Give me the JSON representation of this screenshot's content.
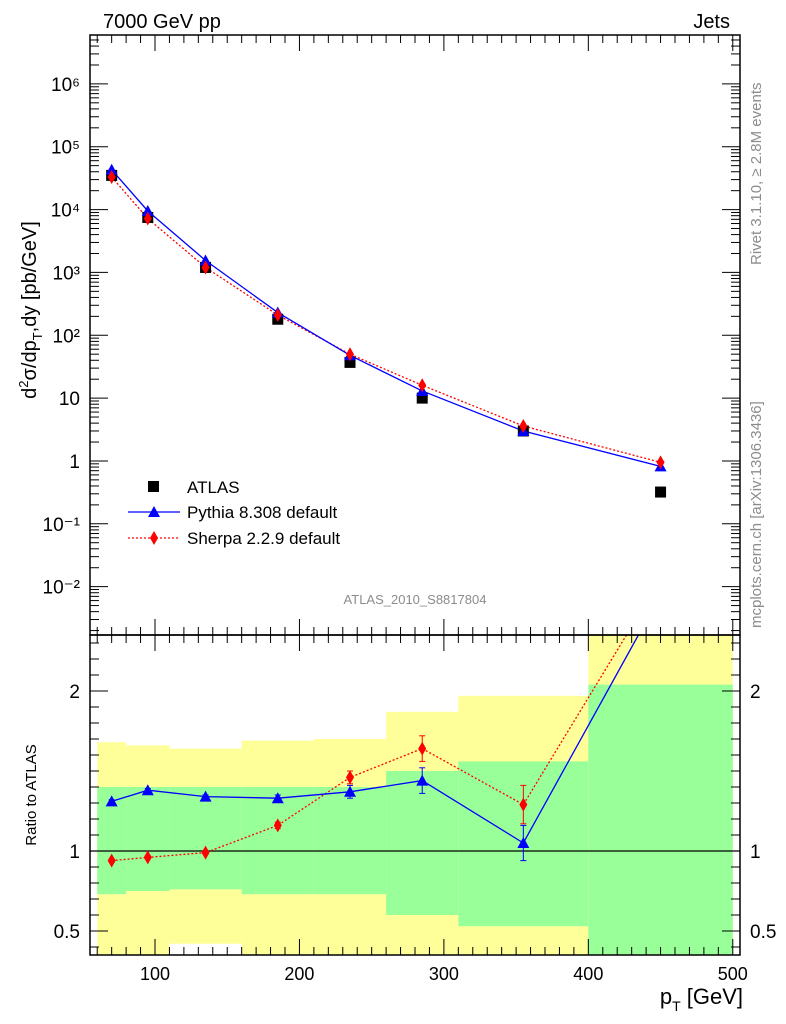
{
  "header": {
    "left": "7000 GeV pp",
    "right": "Jets"
  },
  "side_text": {
    "rivet": "Rivet 3.1.10, ≥ 2.8M events",
    "mcplots": "mcplots.cern.ch [arXiv:1306.3436]"
  },
  "analysis_label": "ATLAS_2010_S8817804",
  "colors": {
    "data": "#000000",
    "pythia": "#0000ff",
    "sherpa": "#ff0000",
    "band_inner": "#99ff99",
    "band_outer": "#ffff99"
  },
  "chart_data": [
    {
      "type": "scatter",
      "panel": "main",
      "ylabel": "d²σ/dp_T,dy [pb/GeV]",
      "yscale": "log",
      "ylim": [
        0.0017,
        6000000
      ],
      "xlim": [
        55,
        505
      ],
      "y_tick_labels": [
        "10⁻²",
        "10⁻¹",
        "1",
        "10",
        "10²",
        "10³",
        "10⁴",
        "10⁵",
        "10⁶"
      ],
      "legend_position": "lower-left",
      "series": [
        {
          "name": "ATLAS",
          "marker": "square",
          "x": [
            70,
            95,
            135,
            185,
            235,
            285,
            355,
            450
          ],
          "y": [
            35000,
            7500,
            1200,
            180,
            37,
            10,
            3,
            0.32
          ]
        },
        {
          "name": "Pythia 8.308 default",
          "marker": "triangle",
          "x": [
            70,
            95,
            135,
            185,
            235,
            285,
            355,
            450
          ],
          "y": [
            43000,
            9500,
            1550,
            230,
            48,
            13,
            3.0,
            0.82
          ]
        },
        {
          "name": "Sherpa 2.2.9 default",
          "marker": "diamond",
          "x": [
            70,
            95,
            135,
            185,
            235,
            285,
            355,
            450
          ],
          "y": [
            33000,
            7200,
            1200,
            210,
            50,
            16,
            3.6,
            0.95
          ]
        }
      ]
    },
    {
      "type": "line",
      "panel": "ratio",
      "ylabel": "Ratio to ATLAS",
      "xlabel": "p_T [GeV]",
      "ylim": [
        0.35,
        2.35
      ],
      "xlim": [
        55,
        505
      ],
      "x_tick_labels": [
        "100",
        "200",
        "300",
        "400",
        "500"
      ],
      "y_tick_labels": [
        "0.5",
        "1",
        "2"
      ],
      "reference_line": 1,
      "bands": [
        {
          "x0": 60,
          "x1": 80,
          "inner": [
            0.73,
            1.4
          ],
          "outer": [
            0.35,
            1.68
          ]
        },
        {
          "x0": 80,
          "x1": 110,
          "inner": [
            0.75,
            1.4
          ],
          "outer": [
            0.35,
            1.66
          ]
        },
        {
          "x0": 110,
          "x1": 160,
          "inner": [
            0.76,
            1.4
          ],
          "outer": [
            0.42,
            1.64
          ]
        },
        {
          "x0": 160,
          "x1": 210,
          "inner": [
            0.73,
            1.4
          ],
          "outer": [
            0.35,
            1.69
          ]
        },
        {
          "x0": 210,
          "x1": 260,
          "inner": [
            0.73,
            1.4
          ],
          "outer": [
            0.35,
            1.7
          ]
        },
        {
          "x0": 260,
          "x1": 310,
          "inner": [
            0.6,
            1.5
          ],
          "outer": [
            0.35,
            1.87
          ]
        },
        {
          "x0": 310,
          "x1": 400,
          "inner": [
            0.53,
            1.56
          ],
          "outer": [
            0.35,
            1.97
          ]
        },
        {
          "x0": 400,
          "x1": 500,
          "inner": [
            0.35,
            2.04
          ],
          "outer": [
            0.35,
            2.35
          ]
        }
      ],
      "series": [
        {
          "name": "Pythia 8.308 default",
          "x": [
            70,
            95,
            135,
            185,
            235,
            285,
            355,
            450
          ],
          "y": [
            1.31,
            1.38,
            1.34,
            1.33,
            1.37,
            1.44,
            1.05,
            2.6
          ],
          "err": [
            0.01,
            0.01,
            0.01,
            0.02,
            0.04,
            0.08,
            0.11,
            0.1
          ]
        },
        {
          "name": "Sherpa 2.2.9 default",
          "x": [
            70,
            95,
            135,
            185,
            235,
            285,
            355,
            450
          ],
          "y": [
            0.94,
            0.96,
            0.99,
            1.16,
            1.46,
            1.64,
            1.29,
            2.7
          ],
          "err": [
            0.01,
            0.01,
            0.01,
            0.02,
            0.04,
            0.08,
            0.12,
            0.1
          ]
        }
      ]
    }
  ]
}
